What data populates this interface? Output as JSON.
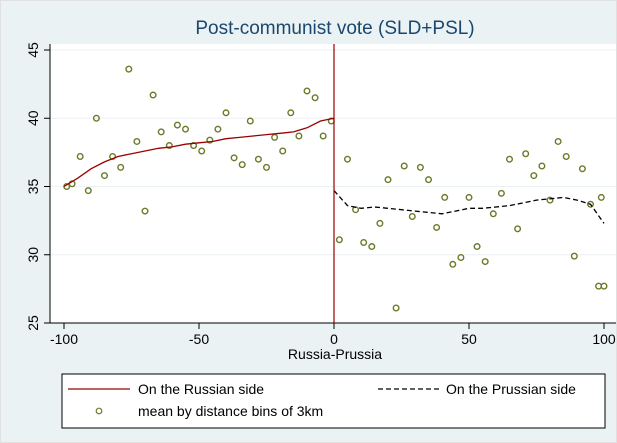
{
  "chart_data": {
    "type": "scatter",
    "title": "Post-communist vote (SLD+PSL)",
    "xlabel": "Russia-Prussia",
    "ylabel": "",
    "xlim": [
      -100,
      100
    ],
    "ylim": [
      25,
      45
    ],
    "x_ticks": [
      -100,
      -50,
      0,
      50,
      100
    ],
    "y_ticks": [
      25,
      30,
      35,
      40,
      45
    ],
    "x_tick_labels": [
      "-100",
      "-50",
      "0",
      "50",
      "100"
    ],
    "y_tick_labels": [
      "25",
      "30",
      "35",
      "40",
      "45"
    ],
    "grid": "horizontal",
    "cutoff_x": 0,
    "legend": {
      "position": "bottom",
      "entries": [
        "On the Russian side",
        "On the Prussian side",
        "mean by distance bins of 3km"
      ]
    },
    "colors": {
      "background": "#eaf2f3",
      "points": "#6b7a2a",
      "russian_line": "#990000",
      "cutoff_line": "#990000",
      "prussian_line": "#000000",
      "title": "#1a476f"
    },
    "series": [
      {
        "name": "mean by distance bins of 3km",
        "kind": "points",
        "points": [
          [
            -99,
            35
          ],
          [
            -97,
            35.2
          ],
          [
            -94,
            37.2
          ],
          [
            -91,
            34.7
          ],
          [
            -88,
            40
          ],
          [
            -85,
            35.8
          ],
          [
            -82,
            37.2
          ],
          [
            -79,
            36.4
          ],
          [
            -76,
            43.6
          ],
          [
            -73,
            38.3
          ],
          [
            -70,
            33.2
          ],
          [
            -67,
            41.7
          ],
          [
            -64,
            39
          ],
          [
            -61,
            38
          ],
          [
            -58,
            39.5
          ],
          [
            -55,
            39.2
          ],
          [
            -52,
            38
          ],
          [
            -49,
            37.6
          ],
          [
            -46,
            38.4
          ],
          [
            -43,
            39.2
          ],
          [
            -40,
            40.4
          ],
          [
            -37,
            37.1
          ],
          [
            -34,
            36.6
          ],
          [
            -31,
            39.8
          ],
          [
            -28,
            37
          ],
          [
            -25,
            36.4
          ],
          [
            -22,
            38.6
          ],
          [
            -19,
            37.6
          ],
          [
            -16,
            40.4
          ],
          [
            -13,
            38.7
          ],
          [
            -10,
            42
          ],
          [
            -7,
            41.5
          ],
          [
            -4,
            38.7
          ],
          [
            -1,
            39.8
          ],
          [
            2,
            31.1
          ],
          [
            5,
            37
          ],
          [
            8,
            33.3
          ],
          [
            11,
            30.9
          ],
          [
            14,
            30.6
          ],
          [
            17,
            32.3
          ],
          [
            20,
            35.5
          ],
          [
            23,
            26.1
          ],
          [
            26,
            36.5
          ],
          [
            29,
            32.8
          ],
          [
            32,
            36.4
          ],
          [
            35,
            35.5
          ],
          [
            38,
            32
          ],
          [
            41,
            34.2
          ],
          [
            44,
            29.3
          ],
          [
            47,
            29.8
          ],
          [
            50,
            34.2
          ],
          [
            53,
            30.6
          ],
          [
            56,
            29.5
          ],
          [
            59,
            33
          ],
          [
            62,
            34.5
          ],
          [
            65,
            37
          ],
          [
            68,
            31.9
          ],
          [
            71,
            37.4
          ],
          [
            74,
            35.8
          ],
          [
            77,
            36.5
          ],
          [
            80,
            34
          ],
          [
            83,
            38.3
          ],
          [
            86,
            37.2
          ],
          [
            89,
            29.9
          ],
          [
            92,
            36.3
          ],
          [
            95,
            33.7
          ],
          [
            98,
            27.7
          ],
          [
            100,
            27.7
          ],
          [
            99,
            34.2
          ]
        ]
      },
      {
        "name": "On the Russian side",
        "kind": "line",
        "points": [
          [
            -100,
            35
          ],
          [
            -95,
            35.6
          ],
          [
            -90,
            36.3
          ],
          [
            -85,
            36.8
          ],
          [
            -80,
            37.2
          ],
          [
            -75,
            37.4
          ],
          [
            -70,
            37.6
          ],
          [
            -65,
            37.8
          ],
          [
            -60,
            37.9
          ],
          [
            -55,
            38.1
          ],
          [
            -50,
            38.2
          ],
          [
            -45,
            38.3
          ],
          [
            -40,
            38.5
          ],
          [
            -35,
            38.6
          ],
          [
            -30,
            38.7
          ],
          [
            -25,
            38.8
          ],
          [
            -20,
            38.9
          ],
          [
            -15,
            39
          ],
          [
            -10,
            39.3
          ],
          [
            -5,
            39.8
          ],
          [
            0,
            40
          ]
        ]
      },
      {
        "name": "On the Prussian side",
        "kind": "line",
        "points": [
          [
            0,
            34.7
          ],
          [
            5,
            33.6
          ],
          [
            10,
            33.4
          ],
          [
            15,
            33.5
          ],
          [
            20,
            33.4
          ],
          [
            25,
            33.3
          ],
          [
            30,
            33.2
          ],
          [
            35,
            33.1
          ],
          [
            40,
            33
          ],
          [
            45,
            33.2
          ],
          [
            50,
            33.4
          ],
          [
            55,
            33.4
          ],
          [
            60,
            33.5
          ],
          [
            65,
            33.6
          ],
          [
            70,
            33.8
          ],
          [
            75,
            34
          ],
          [
            80,
            34.1
          ],
          [
            85,
            34.2
          ],
          [
            90,
            34
          ],
          [
            95,
            33.7
          ],
          [
            100,
            32.3
          ]
        ]
      }
    ]
  }
}
